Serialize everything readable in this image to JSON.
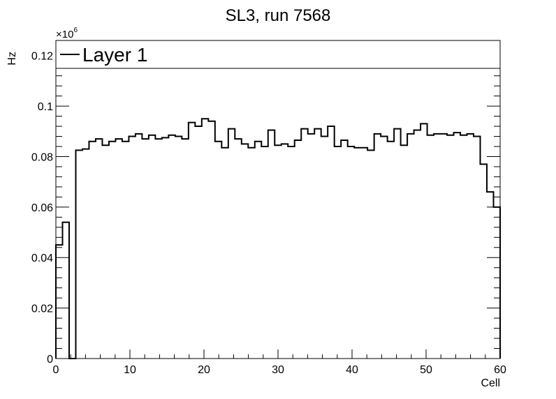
{
  "chart_data": {
    "type": "line",
    "step": true,
    "title": "SL3, run 7568",
    "xlabel": "Cell",
    "ylabel": "Hz",
    "multiplier_label": "×10",
    "multiplier_exp": "6",
    "xlim": [
      0,
      60
    ],
    "ylim": [
      0,
      0.126
    ],
    "xticks": [
      0,
      10,
      20,
      30,
      40,
      50,
      60
    ],
    "xtick_labels": [
      "0",
      "10",
      "20",
      "30",
      "40",
      "50",
      "60"
    ],
    "yticks": [
      0,
      0.02,
      0.04,
      0.06,
      0.08,
      0.1,
      0.12
    ],
    "ytick_labels": [
      "0",
      "0.02",
      "0.04",
      "0.06",
      "0.08",
      "0.1",
      "0.12"
    ],
    "legend_position": "top",
    "series": [
      {
        "name": "Layer 1",
        "color": "#000000",
        "values": [
          0.045,
          0.054,
          0,
          0.0825,
          0.083,
          0.086,
          0.087,
          0.0845,
          0.086,
          0.087,
          0.086,
          0.088,
          0.089,
          0.087,
          0.0885,
          0.087,
          0.0875,
          0.0885,
          0.088,
          0.087,
          0.0935,
          0.092,
          0.095,
          0.094,
          0.086,
          0.0835,
          0.091,
          0.087,
          0.085,
          0.0835,
          0.086,
          0.084,
          0.0905,
          0.0845,
          0.085,
          0.084,
          0.0865,
          0.091,
          0.089,
          0.091,
          0.088,
          0.092,
          0.084,
          0.0865,
          0.084,
          0.0835,
          0.0835,
          0.0825,
          0.089,
          0.088,
          0.086,
          0.091,
          0.0845,
          0.089,
          0.0905,
          0.093,
          0.0885,
          0.089,
          0.089,
          0.0885,
          0.0895,
          0.0885,
          0.089,
          0.088,
          0.077,
          0.066,
          0.06
        ]
      }
    ]
  }
}
